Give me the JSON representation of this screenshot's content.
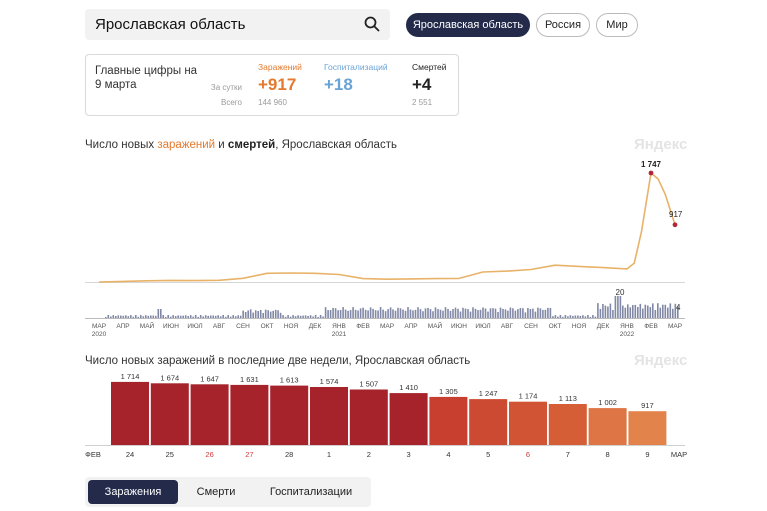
{
  "search": {
    "value": "Ярославская область"
  },
  "region_buttons": [
    {
      "label": "Ярославская область",
      "active": true
    },
    {
      "label": "Россия",
      "active": false
    },
    {
      "label": "Мир",
      "active": false
    }
  ],
  "summary": {
    "title": "Главные цифры на 9 марта",
    "row_day": "За сутки",
    "row_total": "Всего",
    "cols": [
      {
        "label": "Заражений",
        "day": "+917",
        "total": "144 960",
        "color": "#e5792c"
      },
      {
        "label": "Госпитализаций",
        "day": "+18",
        "total": "",
        "color": "#6aa3d6"
      },
      {
        "label": "Смертей",
        "day": "+4",
        "total": "2 551",
        "color": "#222222"
      }
    ]
  },
  "watermark": "Яндекс",
  "chart_data": [
    {
      "type": "line",
      "title_parts": [
        "Число новых ",
        "заражений",
        " и ",
        "смертей",
        ", Ярославская область"
      ],
      "x_ticks": [
        "МАР",
        "АПР",
        "МАЙ",
        "ИЮН",
        "ИЮЛ",
        "АВГ",
        "СЕН",
        "ОКТ",
        "НОЯ",
        "ДЕК",
        "ЯНВ",
        "ФЕВ",
        "МАР",
        "АПР",
        "МАЙ",
        "ИЮН",
        "ИЮЛ",
        "АВГ",
        "СЕН",
        "ОКТ",
        "НОЯ",
        "ДЕК",
        "ЯНВ",
        "ФЕВ",
        "МАР"
      ],
      "year_labels": [
        {
          "at": "МАР",
          "index": 0,
          "label": "2020"
        },
        {
          "at": "ЯНВ",
          "index": 10,
          "label": "2021"
        },
        {
          "at": "ЯНВ",
          "index": 22,
          "label": "2022"
        }
      ],
      "series": [
        {
          "name": "заражений",
          "color": "#e8b268",
          "x": [
            0,
            1,
            2,
            3,
            4,
            5,
            6,
            7,
            8,
            9,
            10,
            11,
            12,
            13,
            14,
            15,
            16,
            17,
            18,
            19,
            20,
            21,
            22,
            22.3,
            22.6,
            23,
            23.3,
            23.6,
            24
          ],
          "y": [
            0,
            10,
            20,
            25,
            22,
            28,
            60,
            140,
            145,
            140,
            120,
            55,
            45,
            50,
            55,
            58,
            160,
            175,
            200,
            270,
            250,
            230,
            210,
            300,
            800,
            1747,
            1650,
            1400,
            917
          ]
        },
        {
          "name": "смертей",
          "color": "#6b7396",
          "note_values": [
            {
              "label": "20"
            },
            {
              "label": "4"
            }
          ]
        }
      ],
      "peak_label": "1 747",
      "last_label": "917"
    },
    {
      "type": "bar",
      "title": "Число новых заражений в последние две недели, Ярославская область",
      "start_label": "ФЕВ",
      "end_label": "МАР",
      "categories": [
        "24",
        "25",
        "26",
        "27",
        "28",
        "1",
        "2",
        "3",
        "4",
        "5",
        "6",
        "7",
        "8",
        "9"
      ],
      "weekend": [
        false,
        false,
        true,
        true,
        false,
        false,
        false,
        false,
        false,
        false,
        true,
        false,
        false,
        false
      ],
      "values": [
        1714,
        1674,
        1647,
        1631,
        1613,
        1574,
        1507,
        1410,
        1305,
        1247,
        1174,
        1113,
        1002,
        917
      ],
      "value_labels": [
        "1 714",
        "1 674",
        "1 647",
        "1 631",
        "1 613",
        "1 574",
        "1 507",
        "1 410",
        "1 305",
        "1 247",
        "1 174",
        "1 113",
        "1 002",
        "917"
      ],
      "colors": [
        "#a6232b",
        "#a6232b",
        "#a6232b",
        "#a6232b",
        "#a6232b",
        "#a6232b",
        "#a6232b",
        "#a6232b",
        "#c93f2f",
        "#cd4a32",
        "#d15434",
        "#d55e37",
        "#dd7544",
        "#e2834c"
      ],
      "ylim": [
        0,
        1900
      ]
    }
  ],
  "tabs": [
    {
      "label": "Заражения",
      "active": true
    },
    {
      "label": "Смерти",
      "active": false
    },
    {
      "label": "Госпитализации",
      "active": false
    }
  ]
}
